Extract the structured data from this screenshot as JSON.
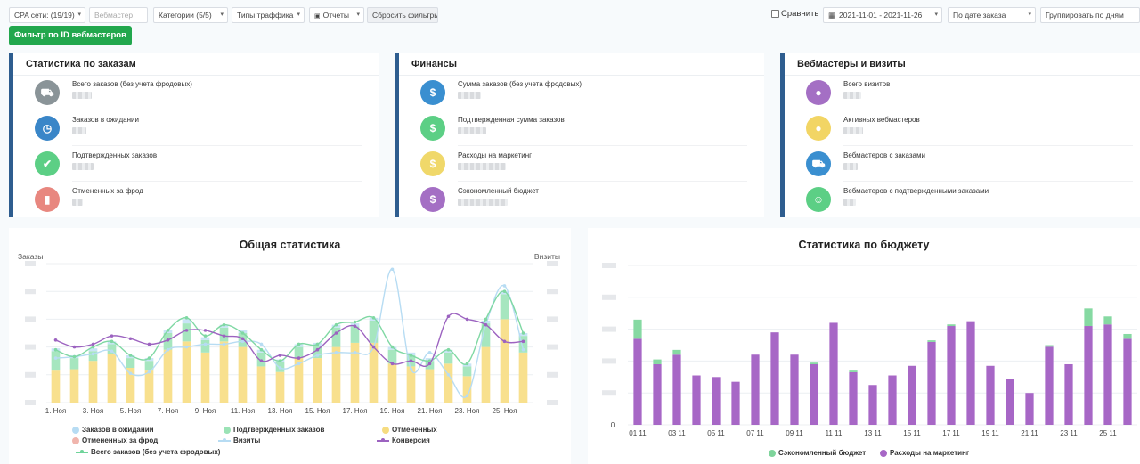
{
  "toolbar": {
    "cpa_networks": "CPA сети: (19/19)",
    "webmaster_placeholder": "Вебмастер",
    "categories": "Категории (5/5)",
    "traffic_types": "Типы траффика",
    "reports": "Отчеты",
    "reset_filters": "Сбросить фильтры",
    "compare": "Сравнить",
    "date_range": "2021-11-01 - 2021-11-26",
    "date_mode": "По дате заказа",
    "group_by": "Группировать по дням",
    "filter_by_webmaster_id": "Фильтр по ID вебмастеров"
  },
  "cards": [
    {
      "title": "Статистика по заказам",
      "rows": [
        {
          "label": "Всего заказов (без учета фродовых)",
          "color": "#8a9498",
          "icon": "cart-icon"
        },
        {
          "label": "Заказов в ожидании",
          "color": "#3a86c8",
          "icon": "clock-icon"
        },
        {
          "label": "Подтвержденных заказов",
          "color": "#5ccf85",
          "icon": "check-icon"
        },
        {
          "label": "Отмененных за фрод",
          "color": "#e8877f",
          "icon": "trash-icon"
        }
      ]
    },
    {
      "title": "Финансы",
      "rows": [
        {
          "label": "Сумма заказов (без учета фродовых)",
          "color": "#3a8fd0",
          "icon": "dollar-icon"
        },
        {
          "label": "Подтвержденная сумма заказов",
          "color": "#5ccf85",
          "icon": "dollar-icon"
        },
        {
          "label": "Расходы на маркетинг",
          "color": "#f0d86a",
          "icon": "dollar-icon"
        },
        {
          "label": "Сэкономленный бюджет",
          "color": "#a46fc4",
          "icon": "dollar-icon"
        }
      ]
    },
    {
      "title": "Вебмастеры и визиты",
      "rows": [
        {
          "label": "Всего визитов",
          "color": "#a46fc4",
          "icon": "user-icon"
        },
        {
          "label": "Активных вебмастеров",
          "color": "#f2d564",
          "icon": "users-icon"
        },
        {
          "label": "Вебмастеров с заказами",
          "color": "#3a8fd0",
          "icon": "cart-icon"
        },
        {
          "label": "Вебмастеров с подтвержденными заказами",
          "color": "#5ccf85",
          "icon": "smile-icon"
        }
      ]
    }
  ],
  "charts": {
    "general_title": "Общая статистика",
    "left_axis_label": "Заказы",
    "right_axis_label": "Визиты",
    "budget_title": "Статистика по бюджету",
    "general_legend": [
      {
        "label": "Заказов в ожидании",
        "color": "#b7dcf3",
        "kind": "dot"
      },
      {
        "label": "Подтвержденных заказов",
        "color": "#9be3b6",
        "kind": "dot"
      },
      {
        "label": "Отмененных",
        "color": "#f6dc80",
        "kind": "dot"
      },
      {
        "label": "Отмененных за фрод",
        "color": "#f0b5ad",
        "kind": "dot"
      },
      {
        "label": "Визиты",
        "color": "#b7dcf3",
        "kind": "line"
      },
      {
        "label": "Конверсия",
        "color": "#9c63c0",
        "kind": "line"
      },
      {
        "label": "Всего заказов (без учета фродовых)",
        "color": "#6fd49a",
        "kind": "line"
      }
    ],
    "budget_legend": [
      {
        "label": "Сэкономленный бюджет",
        "color": "#7ed49b"
      },
      {
        "label": "Расходы на маркетинг",
        "color": "#a767c6"
      }
    ]
  },
  "chart_data": [
    {
      "type": "bar",
      "title": "Общая статистика",
      "ylabel": "Заказы",
      "y2label": "Визиты",
      "categories": [
        "1. Ноя",
        "2. Ноя",
        "3. Ноя",
        "4. Ноя",
        "5. Ноя",
        "6. Ноя",
        "7. Ноя",
        "8. Ноя",
        "9. Ноя",
        "10. Ноя",
        "11. Ноя",
        "12. Ноя",
        "13. Ноя",
        "14. Ноя",
        "15. Ноя",
        "16. Ноя",
        "17. Ноя",
        "18. Ноя",
        "19. Ноя",
        "20. Ноя",
        "21. Ноя",
        "22. Ноя",
        "23. Ноя",
        "24. Ноя",
        "25. Ноя",
        "26. Ноя"
      ],
      "tick_labels": [
        "1. Ноя",
        "3. Ноя",
        "5. Ноя",
        "7. Ноя",
        "9. Ноя",
        "11. Ноя",
        "13. Ноя",
        "15. Ноя",
        "17. Ноя",
        "19. Ноя",
        "21. Ноя",
        "23. Ноя",
        "25. Ноя"
      ],
      "ylim": [
        0,
        100
      ],
      "series": [
        {
          "name": "Отмененных",
          "values": [
            23,
            24,
            30,
            35,
            25,
            23,
            38,
            44,
            36,
            44,
            40,
            26,
            22,
            32,
            32,
            40,
            43,
            43,
            28,
            26,
            24,
            28,
            19,
            40,
            60,
            36
          ]
        },
        {
          "name": "Подтвержденных заказов",
          "values": [
            14,
            8,
            7,
            7,
            7,
            7,
            12,
            13,
            9,
            10,
            10,
            10,
            7,
            8,
            9,
            14,
            12,
            16,
            10,
            8,
            6,
            8,
            7,
            17,
            18,
            12
          ]
        },
        {
          "name": "Заказов в ожидании",
          "values": [
            2,
            2,
            2,
            2,
            2,
            2,
            2,
            3,
            2,
            2,
            2,
            2,
            2,
            2,
            2,
            2,
            2,
            2,
            2,
            2,
            2,
            2,
            2,
            2,
            2,
            2
          ]
        },
        {
          "name": "Визиты",
          "values": [
            32,
            33,
            35,
            37,
            21,
            22,
            38,
            40,
            42,
            42,
            44,
            42,
            25,
            28,
            34,
            36,
            36,
            40,
            96,
            24,
            36,
            20,
            5,
            56,
            84,
            38
          ]
        },
        {
          "name": "Конверсия",
          "values": [
            45,
            40,
            42,
            48,
            46,
            42,
            45,
            52,
            52,
            48,
            46,
            30,
            34,
            32,
            38,
            50,
            55,
            40,
            28,
            30,
            28,
            62,
            60,
            56,
            44,
            44
          ]
        },
        {
          "name": "Всего заказов (без учета фродовых)",
          "values": [
            38,
            33,
            40,
            44,
            34,
            32,
            52,
            61,
            48,
            56,
            50,
            38,
            30,
            42,
            42,
            56,
            58,
            61,
            40,
            34,
            30,
            38,
            28,
            60,
            80,
            50
          ]
        }
      ]
    },
    {
      "type": "bar",
      "title": "Статистика по бюджету",
      "categories": [
        "01 11",
        "02 11",
        "03 11",
        "04 11",
        "05 11",
        "06 11",
        "07 11",
        "08 11",
        "09 11",
        "10 11",
        "11 11",
        "12 11",
        "13 11",
        "14 11",
        "15 11",
        "16 11",
        "17 11",
        "18 11",
        "19 11",
        "20 11",
        "21 11",
        "22 11",
        "23 11",
        "24 11",
        "25 11",
        "26 11"
      ],
      "tick_labels": [
        "01 11",
        "03 11",
        "05 11",
        "07 11",
        "09 11",
        "11 11",
        "13 11",
        "15 11",
        "17 11",
        "19 11",
        "21 11",
        "23 11",
        "25 11"
      ],
      "y_tick_labels": [
        "0"
      ],
      "ylim": [
        0,
        100
      ],
      "series": [
        {
          "name": "Расходы на маркетинг",
          "values": [
            54,
            38,
            44,
            31,
            30,
            27,
            44,
            58,
            44,
            38,
            64,
            33,
            25,
            31,
            37,
            52,
            62,
            65,
            37,
            29,
            20,
            49,
            38,
            62,
            63,
            54
          ]
        },
        {
          "name": "Сэкономленный бюджет",
          "values": [
            12,
            3,
            3,
            0,
            0,
            0,
            0,
            0,
            0,
            1,
            0,
            1,
            0,
            0,
            0,
            1,
            1,
            0,
            0,
            0,
            0,
            1,
            0,
            11,
            5,
            3
          ]
        }
      ]
    }
  ]
}
